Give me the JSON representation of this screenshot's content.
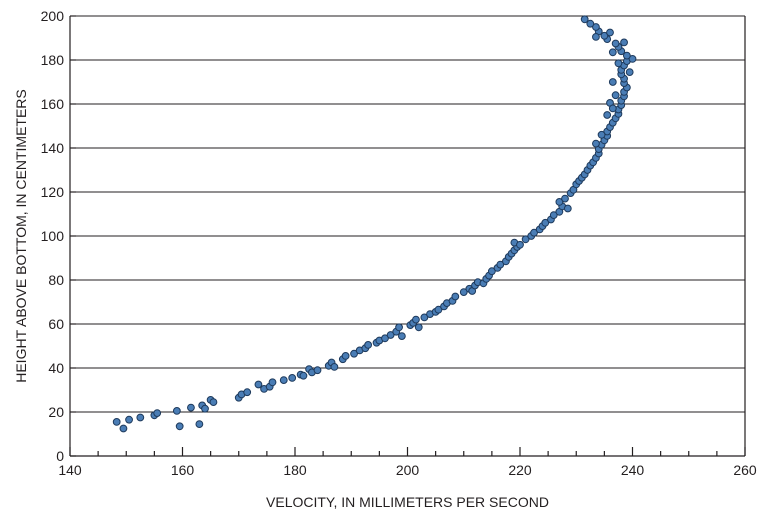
{
  "chart_data": {
    "type": "scatter",
    "title": "",
    "xlabel": "VELOCITY, IN MILLIMETERS PER SECOND",
    "ylabel": "HEIGHT ABOVE BOTTOM, IN CENTIMETERS",
    "xlim": [
      140,
      260
    ],
    "ylim": [
      0,
      200
    ],
    "x_ticks": [
      140,
      160,
      180,
      200,
      220,
      240,
      260
    ],
    "x_tick_labels": [
      "140",
      "160",
      "180",
      "200",
      "220",
      "240",
      "260"
    ],
    "x_minor_step": 5,
    "y_ticks": [
      0,
      20,
      40,
      60,
      80,
      100,
      120,
      140,
      160,
      180,
      200
    ],
    "y_tick_labels": [
      "0",
      "20",
      "40",
      "60",
      "80",
      "100",
      "120",
      "140",
      "160",
      "180",
      "200"
    ],
    "grid": "horizontal",
    "marker_color": "#4a7db5",
    "marker_edge_color": "#1e3a5c",
    "series": [
      {
        "points": [
          [
            148.3,
            15.5
          ],
          [
            149.5,
            12.5
          ],
          [
            150.5,
            16.5
          ],
          [
            152.5,
            17.5
          ],
          [
            155.0,
            18.5
          ],
          [
            155.5,
            19.5
          ],
          [
            159.0,
            20.5
          ],
          [
            159.5,
            13.5
          ],
          [
            161.5,
            22.0
          ],
          [
            163.0,
            14.5
          ],
          [
            163.5,
            23.0
          ],
          [
            164.0,
            21.5
          ],
          [
            165.0,
            25.5
          ],
          [
            165.5,
            24.5
          ],
          [
            170.0,
            26.5
          ],
          [
            170.5,
            28.0
          ],
          [
            171.5,
            29.0
          ],
          [
            173.5,
            32.5
          ],
          [
            174.5,
            30.5
          ],
          [
            175.5,
            31.5
          ],
          [
            176.0,
            33.5
          ],
          [
            178.0,
            34.5
          ],
          [
            179.5,
            35.5
          ],
          [
            181.0,
            37.0
          ],
          [
            181.5,
            36.5
          ],
          [
            182.5,
            39.5
          ],
          [
            183.0,
            38.0
          ],
          [
            184.0,
            39.0
          ],
          [
            186.0,
            41.0
          ],
          [
            186.5,
            42.5
          ],
          [
            187.0,
            40.5
          ],
          [
            188.5,
            44.0
          ],
          [
            189.0,
            45.5
          ],
          [
            190.5,
            46.5
          ],
          [
            191.5,
            48.0
          ],
          [
            192.5,
            49.0
          ],
          [
            193.0,
            50.5
          ],
          [
            194.5,
            51.5
          ],
          [
            195.0,
            52.5
          ],
          [
            196.0,
            53.5
          ],
          [
            197.0,
            55.0
          ],
          [
            198.0,
            56.5
          ],
          [
            198.5,
            58.5
          ],
          [
            199.0,
            54.5
          ],
          [
            200.5,
            59.5
          ],
          [
            201.0,
            60.5
          ],
          [
            201.5,
            62.0
          ],
          [
            202.0,
            58.5
          ],
          [
            203.0,
            63.0
          ],
          [
            204.0,
            64.5
          ],
          [
            205.0,
            65.5
          ],
          [
            205.5,
            66.5
          ],
          [
            206.5,
            68.0
          ],
          [
            207.0,
            69.5
          ],
          [
            208.0,
            70.5
          ],
          [
            208.5,
            72.5
          ],
          [
            210.0,
            74.5
          ],
          [
            211.0,
            76.0
          ],
          [
            211.5,
            75.0
          ],
          [
            212.0,
            77.5
          ],
          [
            212.5,
            79.0
          ],
          [
            213.5,
            78.5
          ],
          [
            214.0,
            80.5
          ],
          [
            214.5,
            82.0
          ],
          [
            215.0,
            84.0
          ],
          [
            216.0,
            85.5
          ],
          [
            216.5,
            87.0
          ],
          [
            217.5,
            88.5
          ],
          [
            218.0,
            90.5
          ],
          [
            218.5,
            92.0
          ],
          [
            219.0,
            93.5
          ],
          [
            219.5,
            95.0
          ],
          [
            219.0,
            97.0
          ],
          [
            220.0,
            96.0
          ],
          [
            221.0,
            98.5
          ],
          [
            222.0,
            100.0
          ],
          [
            222.5,
            101.5
          ],
          [
            223.5,
            103.0
          ],
          [
            224.0,
            104.5
          ],
          [
            224.5,
            106.0
          ],
          [
            225.5,
            107.5
          ],
          [
            226.0,
            109.5
          ],
          [
            227.0,
            111.0
          ],
          [
            227.5,
            113.5
          ],
          [
            227.0,
            115.5
          ],
          [
            228.0,
            117.0
          ],
          [
            228.5,
            112.5
          ],
          [
            229.0,
            119.5
          ],
          [
            229.5,
            121.0
          ],
          [
            230.0,
            123.5
          ],
          [
            230.5,
            125.0
          ],
          [
            231.0,
            126.5
          ],
          [
            231.5,
            128.0
          ],
          [
            232.0,
            130.0
          ],
          [
            232.5,
            132.0
          ],
          [
            233.0,
            133.5
          ],
          [
            233.5,
            135.5
          ],
          [
            234.0,
            137.5
          ],
          [
            234.0,
            139.5
          ],
          [
            234.5,
            141.5
          ],
          [
            235.0,
            143.5
          ],
          [
            235.5,
            145.5
          ],
          [
            235.5,
            147.5
          ],
          [
            236.0,
            149.5
          ],
          [
            236.5,
            151.5
          ],
          [
            237.0,
            153.5
          ],
          [
            237.5,
            155.5
          ],
          [
            237.5,
            157.5
          ],
          [
            238.0,
            159.5
          ],
          [
            238.0,
            161.5
          ],
          [
            238.5,
            163.5
          ],
          [
            238.5,
            165.5
          ],
          [
            239.0,
            167.5
          ],
          [
            238.5,
            169.5
          ],
          [
            238.5,
            171.5
          ],
          [
            238.0,
            173.5
          ],
          [
            238.0,
            175.5
          ],
          [
            238.5,
            177.5
          ],
          [
            239.0,
            179.5
          ],
          [
            240.0,
            180.5
          ],
          [
            239.0,
            182.0
          ],
          [
            238.0,
            184.0
          ],
          [
            237.5,
            186.0
          ],
          [
            237.0,
            187.5
          ],
          [
            235.5,
            189.5
          ],
          [
            235.0,
            191.0
          ],
          [
            234.0,
            193.0
          ],
          [
            233.5,
            195.0
          ],
          [
            232.5,
            196.5
          ],
          [
            231.5,
            198.5
          ],
          [
            236.0,
            160.5
          ],
          [
            237.0,
            164.0
          ],
          [
            236.5,
            170.0
          ],
          [
            237.5,
            178.5
          ],
          [
            236.5,
            183.5
          ],
          [
            235.5,
            155.0
          ],
          [
            236.5,
            158.0
          ],
          [
            234.5,
            146.0
          ],
          [
            233.5,
            142.0
          ],
          [
            239.5,
            174.5
          ],
          [
            238.5,
            188.0
          ],
          [
            236.0,
            192.5
          ],
          [
            233.5,
            190.5
          ]
        ]
      }
    ]
  }
}
